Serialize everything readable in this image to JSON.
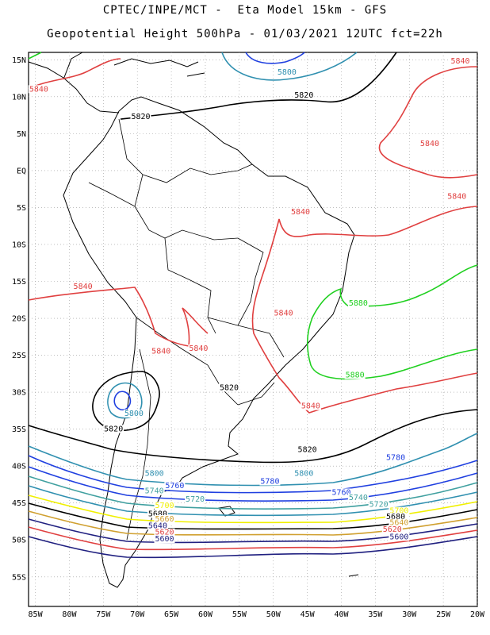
{
  "title_line1": "CPTEC/INPE/MCT -  Eta Model 15km - GFS",
  "title_line2": "Geopotential Height 500hPa - 01/03/2021 12UTC fct=22h",
  "map": {
    "lon_range": [
      -86,
      -20
    ],
    "lat_range": [
      -59,
      16
    ],
    "lat_ticks": [
      {
        "lat": 15,
        "label": "15N"
      },
      {
        "lat": 10,
        "label": "10N"
      },
      {
        "lat": 5,
        "label": "5N"
      },
      {
        "lat": 0,
        "label": "EQ"
      },
      {
        "lat": -5,
        "label": "5S"
      },
      {
        "lat": -10,
        "label": "10S"
      },
      {
        "lat": -15,
        "label": "15S"
      },
      {
        "lat": -20,
        "label": "20S"
      },
      {
        "lat": -25,
        "label": "25S"
      },
      {
        "lat": -30,
        "label": "30S"
      },
      {
        "lat": -35,
        "label": "35S"
      },
      {
        "lat": -40,
        "label": "40S"
      },
      {
        "lat": -45,
        "label": "45S"
      },
      {
        "lat": -50,
        "label": "50S"
      },
      {
        "lat": -55,
        "label": "55S"
      }
    ],
    "lon_ticks": [
      {
        "lon": -85,
        "label": "85W"
      },
      {
        "lon": -80,
        "label": "80W"
      },
      {
        "lon": -75,
        "label": "75W"
      },
      {
        "lon": -70,
        "label": "70W"
      },
      {
        "lon": -65,
        "label": "65W"
      },
      {
        "lon": -60,
        "label": "60W"
      },
      {
        "lon": -55,
        "label": "55W"
      },
      {
        "lon": -50,
        "label": "50W"
      },
      {
        "lon": -45,
        "label": "45W"
      },
      {
        "lon": -40,
        "label": "40W"
      },
      {
        "lon": -35,
        "label": "35W"
      },
      {
        "lon": -30,
        "label": "30W"
      },
      {
        "lon": -25,
        "label": "25W"
      },
      {
        "lon": -20,
        "label": "20W"
      }
    ],
    "contour_colors": {
      "5520": "#202080",
      "5580": "#2030a0",
      "5640": "#d0a030",
      "5700": "#f0f000",
      "5740": "#40a0a0",
      "5760": "#2040e0",
      "5780": "#2040e0",
      "5800": "#3090b0",
      "5820": "#000000",
      "5840": "#e04040",
      "5880": "#20d020"
    },
    "labels": [
      {
        "text": "5800",
        "lon": -48,
        "lat": 13.0,
        "color": "#3090b0"
      },
      {
        "text": "5820",
        "lon": -45.5,
        "lat": 9.9,
        "color": "#000000"
      },
      {
        "text": "5820",
        "lon": -69.5,
        "lat": 7.0,
        "color": "#000000"
      },
      {
        "text": "5840",
        "lon": -84.5,
        "lat": 10.7,
        "color": "#e04040"
      },
      {
        "text": "5840",
        "lon": -22.5,
        "lat": 14.5,
        "color": "#e04040"
      },
      {
        "text": "5840",
        "lon": -27.0,
        "lat": 3.3,
        "color": "#e04040"
      },
      {
        "text": "5840",
        "lon": -23.0,
        "lat": -3.8,
        "color": "#e04040"
      },
      {
        "text": "5840",
        "lon": -46.0,
        "lat": -5.9,
        "color": "#e04040"
      },
      {
        "text": "5840",
        "lon": -78.0,
        "lat": -16.0,
        "color": "#e04040"
      },
      {
        "text": "5840",
        "lon": -48.5,
        "lat": -19.6,
        "color": "#e04040"
      },
      {
        "text": "5840",
        "lon": -66.5,
        "lat": -24.8,
        "color": "#e04040"
      },
      {
        "text": "5840",
        "lon": -61.0,
        "lat": -24.4,
        "color": "#e04040"
      },
      {
        "text": "5840",
        "lon": -44.5,
        "lat": -32.2,
        "color": "#e04040"
      },
      {
        "text": "5880",
        "lon": -37.5,
        "lat": -18.3,
        "color": "#20d020"
      },
      {
        "text": "5880",
        "lon": -38.0,
        "lat": -28.0,
        "color": "#20d020"
      },
      {
        "text": "5820",
        "lon": -56.5,
        "lat": -29.7,
        "color": "#000000"
      },
      {
        "text": "5800",
        "lon": -70.5,
        "lat": -33.2,
        "color": "#3090b0"
      },
      {
        "text": "5820",
        "lon": -73.5,
        "lat": -35.3,
        "color": "#000000"
      },
      {
        "text": "5820",
        "lon": -45.0,
        "lat": -38.1,
        "color": "#000000"
      },
      {
        "text": "5780",
        "lon": -32.0,
        "lat": -39.2,
        "color": "#2040e0"
      },
      {
        "text": "5800",
        "lon": -67.5,
        "lat": -41.3,
        "color": "#3090b0"
      },
      {
        "text": "5800",
        "lon": -45.5,
        "lat": -41.3,
        "color": "#3090b0"
      },
      {
        "text": "5780",
        "lon": -50.5,
        "lat": -42.4,
        "color": "#2040e0"
      },
      {
        "text": "5760",
        "lon": -64.5,
        "lat": -43.0,
        "color": "#2040e0"
      },
      {
        "text": "5760",
        "lon": -40.0,
        "lat": -43.9,
        "color": "#2040e0"
      },
      {
        "text": "5740",
        "lon": -67.5,
        "lat": -43.7,
        "color": "#40a0a0"
      },
      {
        "text": "5740",
        "lon": -37.5,
        "lat": -44.6,
        "color": "#40a0a0"
      },
      {
        "text": "5720",
        "lon": -61.5,
        "lat": -44.8,
        "color": "#40a0a0"
      },
      {
        "text": "5720",
        "lon": -34.5,
        "lat": -45.5,
        "color": "#40a0a0"
      },
      {
        "text": "5700",
        "lon": -66.0,
        "lat": -45.7,
        "color": "#f0f000"
      },
      {
        "text": "5700",
        "lon": -31.5,
        "lat": -46.4,
        "color": "#f0f000"
      },
      {
        "text": "5680",
        "lon": -67.0,
        "lat": -46.8,
        "color": "#000000"
      },
      {
        "text": "5680",
        "lon": -32.0,
        "lat": -47.2,
        "color": "#000000"
      },
      {
        "text": "5660",
        "lon": -66.0,
        "lat": -47.5,
        "color": "#d0a030"
      },
      {
        "text": "5640",
        "lon": -67.0,
        "lat": -48.4,
        "color": "#202080"
      },
      {
        "text": "5640",
        "lon": -31.5,
        "lat": -48.0,
        "color": "#d0a030"
      },
      {
        "text": "5620",
        "lon": -66.0,
        "lat": -49.3,
        "color": "#e04040"
      },
      {
        "text": "5620",
        "lon": -32.5,
        "lat": -48.9,
        "color": "#e04040"
      },
      {
        "text": "5600",
        "lon": -66.0,
        "lat": -50.2,
        "color": "#202080"
      },
      {
        "text": "5600",
        "lon": -31.5,
        "lat": -49.9,
        "color": "#202080"
      }
    ]
  }
}
